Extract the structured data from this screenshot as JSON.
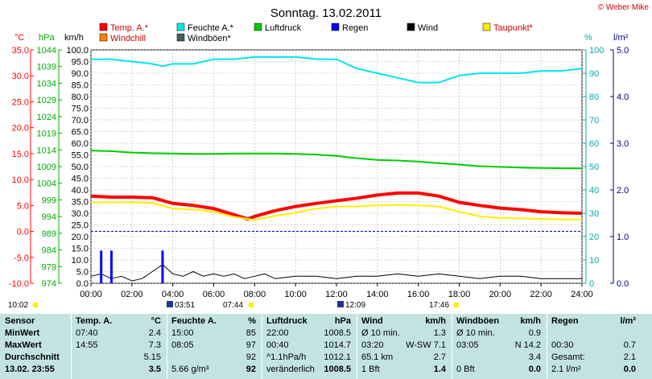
{
  "title": "Sonntag. 13.02.2011",
  "credit": "© Weber Mike",
  "unit_labels": {
    "temp": "°C",
    "pressure": "hPa",
    "speed": "km/h",
    "humidity": "%",
    "rain": "l/m²"
  },
  "legend": [
    {
      "label": "Temp. A.*",
      "color": "#ff0000"
    },
    {
      "label": "Feuchte A.*",
      "color": "#00e5ee"
    },
    {
      "label": "Luftdruck",
      "color": "#00cc00"
    },
    {
      "label": "Regen",
      "color": "#0000ff"
    },
    {
      "label": "Wind",
      "color": "#000000"
    },
    {
      "label": "Taupunkt*",
      "color": "#ffee00"
    },
    {
      "label": "Windchill",
      "color": "#ff8000"
    },
    {
      "label": "Windböen*",
      "color": "#406060"
    }
  ],
  "sun_times": {
    "sunrise": "07:44",
    "sunset": "17:46",
    "moonrise": "03:51",
    "moonset": "12:09",
    "day_length": "10:02"
  },
  "chart_data": {
    "type": "line",
    "title": "Sonntag. 13.02.2011",
    "x_ticks": [
      "00:00",
      "02:00",
      "04:00",
      "06:00",
      "08:00",
      "10:00",
      "12:00",
      "14:00",
      "16:00",
      "18:00",
      "20:00",
      "22:00",
      "24:00"
    ],
    "xlim": [
      0,
      24
    ],
    "axes": {
      "temp": {
        "unit": "°C",
        "range": [
          -10,
          35
        ],
        "ticks": [
          "-10.0",
          "-5.0",
          "0.0",
          "5.0",
          "10.0",
          "15.0",
          "20.0",
          "25.0",
          "30.0",
          "35.0"
        ]
      },
      "pressure": {
        "unit": "hPa",
        "range": [
          974,
          1044
        ],
        "ticks": [
          "974",
          "979",
          "984",
          "989",
          "994",
          "999",
          "1004",
          "1009",
          "1014",
          "1019",
          "1024",
          "1029",
          "1034",
          "1039",
          "1044"
        ]
      },
      "speed": {
        "unit": "km/h",
        "range": [
          0,
          100
        ],
        "ticks": [
          "0.0",
          "5.0",
          "10.0",
          "15.0",
          "20.0",
          "25.0",
          "30.0",
          "35.0",
          "40.0",
          "45.0",
          "50.0",
          "55.0",
          "60.0",
          "65.0",
          "70.0",
          "75.0",
          "80.0",
          "85.0",
          "90.0",
          "95.0",
          "100.0"
        ]
      },
      "humidity": {
        "unit": "%",
        "range": [
          0,
          100
        ],
        "ticks": [
          "0",
          "10",
          "20",
          "30",
          "40",
          "50",
          "60",
          "70",
          "80",
          "90",
          "100"
        ]
      },
      "rain": {
        "unit": "l/m²",
        "range": [
          0,
          5
        ],
        "ticks": [
          "0.0",
          "1.0",
          "2.0",
          "3.0",
          "4.0",
          "5.0"
        ]
      }
    },
    "series": [
      {
        "name": "Feuchte A.*",
        "axis": "humidity",
        "color": "#00e5ee",
        "x": [
          0,
          1,
          2,
          3,
          3.5,
          4,
          5,
          6,
          7,
          8,
          9,
          10,
          11,
          12,
          13,
          14,
          15,
          16,
          17,
          18,
          19,
          20,
          21,
          22,
          23,
          24
        ],
        "y": [
          96,
          96,
          95,
          94,
          93,
          94,
          94,
          96,
          96,
          97,
          97,
          97,
          96,
          96,
          92,
          90,
          88,
          86,
          86,
          89,
          90,
          90,
          90,
          91,
          91,
          92
        ]
      },
      {
        "name": "Luftdruck",
        "axis": "pressure",
        "color": "#00cc00",
        "x": [
          0,
          1,
          2,
          3,
          4,
          5,
          6,
          7,
          8,
          9,
          10,
          11,
          12,
          13,
          14,
          15,
          16,
          17,
          18,
          19,
          20,
          21,
          22,
          23,
          24
        ],
        "y": [
          1013.8,
          1013.6,
          1013.2,
          1013.0,
          1012.9,
          1012.8,
          1012.8,
          1012.9,
          1012.9,
          1012.9,
          1012.8,
          1012.6,
          1012.2,
          1011.5,
          1011.0,
          1010.8,
          1010.5,
          1010.0,
          1009.6,
          1009.1,
          1008.9,
          1008.7,
          1008.6,
          1008.5,
          1008.5
        ]
      },
      {
        "name": "Temp. A.*",
        "axis": "temp",
        "color": "#ff0000",
        "x": [
          0,
          1,
          2,
          3,
          4,
          5,
          6,
          7,
          7.67,
          8,
          9,
          10,
          11,
          12,
          13,
          14,
          15,
          16,
          17,
          18,
          19,
          20,
          21,
          22,
          23,
          24
        ],
        "y": [
          6.8,
          6.6,
          6.6,
          6.5,
          5.4,
          5.0,
          4.4,
          3.2,
          2.4,
          2.9,
          4.0,
          4.8,
          5.4,
          5.9,
          6.4,
          7.0,
          7.4,
          7.4,
          6.8,
          5.6,
          5.0,
          4.5,
          4.2,
          3.8,
          3.6,
          3.5
        ]
      },
      {
        "name": "Taupunkt*",
        "axis": "temp",
        "color": "#ffee00",
        "x": [
          0,
          1,
          2,
          3,
          4,
          5,
          6,
          7,
          8,
          9,
          10,
          11,
          12,
          13,
          14,
          15,
          16,
          17,
          18,
          19,
          20,
          21,
          22,
          23,
          24
        ],
        "y": [
          5.6,
          5.6,
          5.6,
          5.5,
          4.4,
          4.2,
          3.8,
          2.8,
          2.2,
          3.0,
          3.6,
          4.4,
          4.8,
          4.8,
          5.0,
          5.1,
          5.0,
          4.8,
          3.8,
          2.9,
          2.6,
          2.5,
          2.4,
          2.3,
          2.3
        ]
      },
      {
        "name": "Wind",
        "axis": "speed",
        "color": "#000000",
        "x": [
          0,
          0.5,
          1,
          1.5,
          2,
          2.5,
          3,
          3.5,
          4,
          4.5,
          5,
          5.5,
          6,
          6.5,
          7,
          7.5,
          8,
          8.5,
          9,
          10,
          11,
          12,
          13,
          14,
          15,
          16,
          17,
          18,
          19,
          20,
          21,
          22,
          23,
          24
        ],
        "y": [
          3,
          4,
          2,
          3,
          1,
          2,
          5,
          8,
          4,
          3,
          5,
          3,
          4,
          3,
          4,
          2,
          3,
          4,
          2,
          3,
          3,
          2,
          3,
          3,
          4,
          3,
          4,
          3,
          2,
          3,
          3,
          2,
          2,
          2
        ]
      },
      {
        "name": "Regen",
        "axis": "rain",
        "type": "bar",
        "color": "#0000ff",
        "x": [
          0.5,
          1.0,
          3.5
        ],
        "y": [
          0.7,
          0.7,
          0.7
        ]
      }
    ]
  },
  "stats": {
    "col_sensor": {
      "header": "Sensor",
      "rows": [
        "MinWert",
        "MaxWert",
        "Durchschnitt",
        "13.02. 23:55"
      ]
    },
    "col_temp": {
      "header": "Temp. A.",
      "unit": "°C",
      "rows": [
        [
          "07:40",
          "2.4"
        ],
        [
          "14:55",
          "7.3"
        ],
        [
          "",
          "5.15"
        ],
        [
          "",
          "3.5"
        ]
      ]
    },
    "col_hum": {
      "header": "Feuchte A.",
      "unit": "%",
      "rows": [
        [
          "15:00",
          "85"
        ],
        [
          "08:05",
          "97"
        ],
        [
          "",
          "92"
        ],
        [
          "5.66 g/m³",
          "92"
        ]
      ]
    },
    "col_press": {
      "header": "Luftdruck",
      "unit": "hPa",
      "rows": [
        [
          "22:00",
          "1008.5"
        ],
        [
          "00:40",
          "1014.7"
        ],
        [
          "^1.1hPa/h",
          "1012.1"
        ],
        [
          "veränderlich",
          "1008.5"
        ]
      ]
    },
    "col_wind": {
      "header": "Wind",
      "unit": "km/h",
      "rows": [
        [
          "Ø 10 min.",
          "1.3"
        ],
        [
          "03:20",
          "W-SW 7.1"
        ],
        [
          "65.1 km",
          "2.7"
        ],
        [
          "1 Bft",
          "1.4"
        ]
      ]
    },
    "col_gust": {
      "header": "Windböen",
      "unit": "km/h",
      "rows": [
        [
          "Ø 10 min.",
          "0.9"
        ],
        [
          "03:05",
          "N 14.2"
        ],
        [
          "",
          "3.4"
        ],
        [
          "0 Bft",
          "0.0"
        ]
      ]
    },
    "col_rain": {
      "header": "Regen",
      "unit": "l/m²",
      "rows": [
        [
          "",
          ""
        ],
        [
          "00:30",
          "0.7"
        ],
        [
          "Gesamt:",
          "2.1"
        ],
        [
          "2.1 l/m²",
          "0.0"
        ]
      ]
    }
  }
}
